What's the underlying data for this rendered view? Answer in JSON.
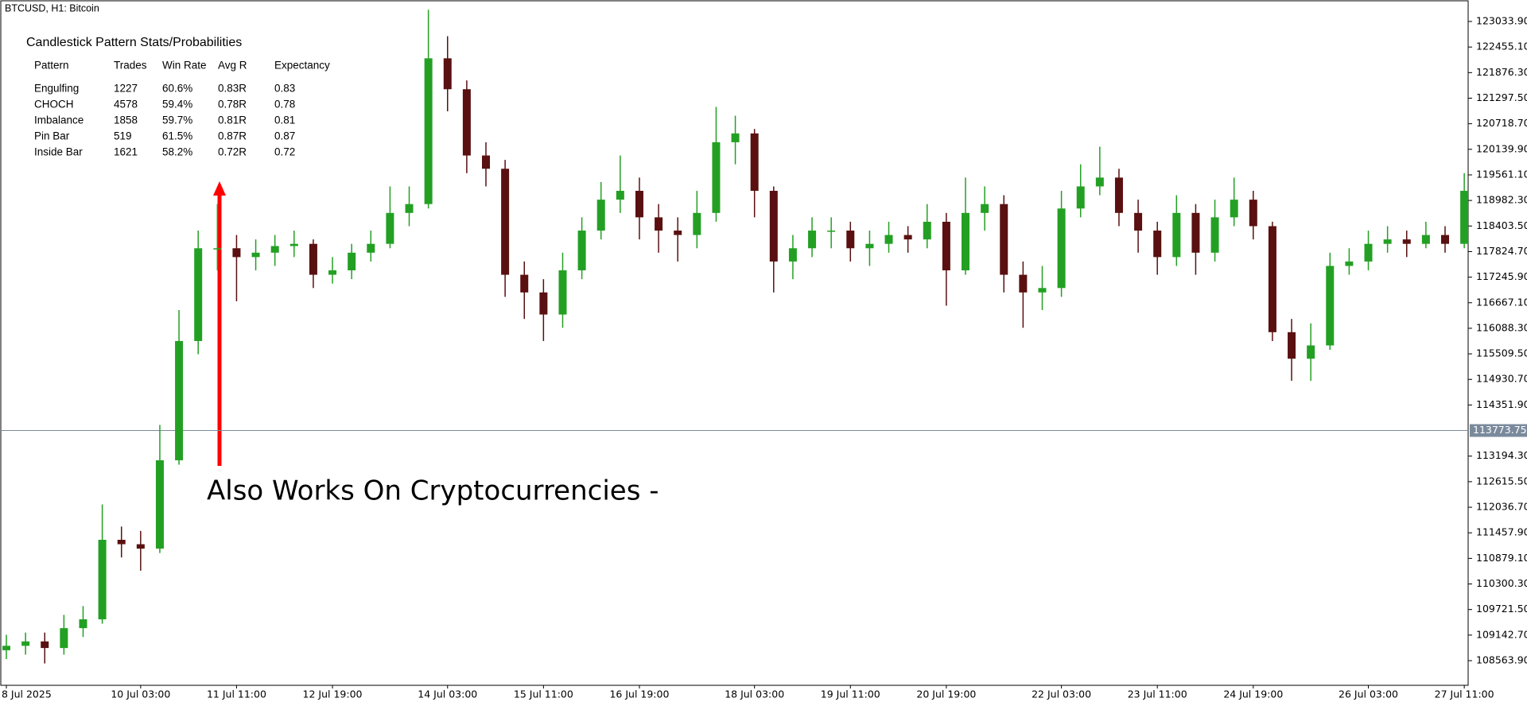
{
  "header": {
    "symbol": "BTCUSD, H1:  Bitcoin"
  },
  "stats_panel": {
    "title": "Candlestick Pattern Stats/Probabilities",
    "columns": [
      "Pattern",
      "Trades",
      "Win Rate",
      "Avg R",
      "Expectancy"
    ],
    "rows": [
      [
        "Engulfing",
        "1227",
        "60.6%",
        "0.83R",
        "0.83"
      ],
      [
        "CHOCH",
        "4578",
        "59.4%",
        "0.78R",
        "0.78"
      ],
      [
        "Imbalance",
        "1858",
        "59.7%",
        "0.81R",
        "0.81"
      ],
      [
        "Pin Bar",
        "519",
        "61.5%",
        "0.87R",
        "0.87"
      ],
      [
        "Inside Bar",
        "1621",
        "58.2%",
        "0.72R",
        "0.72"
      ]
    ],
    "expectancy_color": "#1a8c1a"
  },
  "annotation": {
    "text": "Also Works On Cryptocurrencies -",
    "arrow_color": "#ff0000"
  },
  "chart_data": {
    "type": "candlestick",
    "categories": [
      "8 Jul 2025",
      null,
      null,
      null,
      null,
      null,
      null,
      "10 Jul 03:00",
      null,
      null,
      null,
      null,
      "11 Jul 11:00",
      null,
      null,
      null,
      null,
      "12 Jul 19:00",
      null,
      null,
      null,
      null,
      null,
      "14 Jul 03:00",
      null,
      null,
      null,
      null,
      "15 Jul 11:00",
      null,
      null,
      null,
      null,
      "16 Jul 19:00",
      null,
      null,
      null,
      null,
      null,
      "18 Jul 03:00",
      null,
      null,
      null,
      null,
      "19 Jul 11:00",
      null,
      null,
      null,
      null,
      "20 Jul 19:00",
      null,
      null,
      null,
      null,
      null,
      "22 Jul 03:00",
      null,
      null,
      null,
      null,
      "23 Jul 11:00",
      null,
      null,
      null,
      null,
      "24 Jul 19:00",
      null,
      null,
      null,
      null,
      null,
      "26 Jul 03:00",
      null,
      null,
      null,
      null,
      "27 Jul 11:00"
    ],
    "series": [
      {
        "up_color": "#23a023",
        "down_color": "#5a1010",
        "open": [
          108800,
          108900,
          109000,
          108850,
          109300,
          109500,
          111300,
          111200,
          111100,
          113100,
          115800,
          117900,
          117900,
          117700,
          117800,
          117950,
          118000,
          117300,
          117400,
          117800,
          118000,
          118700,
          118900,
          122200,
          121500,
          120000,
          119700,
          117300,
          116900,
          116400,
          117400,
          118300,
          119000,
          119200,
          118600,
          118300,
          118200,
          118700,
          120300,
          120500,
          119200,
          117600,
          117900,
          118300,
          118300,
          117900,
          118000,
          118200,
          118100,
          118500,
          117400,
          118700,
          118900,
          117300,
          116900,
          117000,
          118800,
          119300,
          119500,
          118700,
          118300,
          117700,
          118700,
          117800,
          118600,
          119000,
          118400,
          116000,
          115400,
          115700,
          117500,
          117600,
          118000,
          118100,
          118000,
          118200,
          118000
        ],
        "high": [
          109150,
          109200,
          109200,
          109600,
          109800,
          112100,
          111600,
          111500,
          113900,
          116500,
          118300,
          118900,
          118200,
          118100,
          118200,
          118300,
          118100,
          117700,
          118000,
          118300,
          119300,
          119300,
          123300,
          122700,
          121700,
          120300,
          119900,
          117600,
          117200,
          117800,
          118600,
          119400,
          120000,
          119500,
          118900,
          118600,
          119200,
          121100,
          120900,
          120600,
          119300,
          118200,
          118600,
          118600,
          118500,
          118300,
          118500,
          118400,
          118900,
          118700,
          119500,
          119300,
          119100,
          117600,
          117500,
          119200,
          119800,
          120200,
          119700,
          119000,
          118500,
          119100,
          118900,
          119000,
          119500,
          119200,
          118500,
          116300,
          116200,
          117800,
          117900,
          118300,
          118400,
          118300,
          118500,
          118400,
          119600
        ],
        "low": [
          108600,
          108700,
          108500,
          108700,
          109100,
          109400,
          110900,
          110600,
          111000,
          113000,
          115500,
          117400,
          116700,
          117400,
          117500,
          117700,
          117000,
          117100,
          117200,
          117600,
          117900,
          118400,
          118800,
          121000,
          119600,
          119300,
          116800,
          116300,
          115800,
          116100,
          117200,
          118100,
          118700,
          118100,
          117800,
          117600,
          117900,
          118500,
          119800,
          118600,
          116900,
          117200,
          117700,
          117900,
          117600,
          117500,
          117800,
          117800,
          117900,
          116600,
          117300,
          118300,
          116900,
          116100,
          116500,
          116800,
          118600,
          119100,
          118400,
          117800,
          117300,
          117500,
          117300,
          117600,
          118400,
          118100,
          115800,
          114900,
          114900,
          115600,
          117300,
          117400,
          117800,
          117700,
          117900,
          117800,
          117900
        ],
        "close": [
          108900,
          109000,
          108850,
          109300,
          109500,
          111300,
          111200,
          111100,
          113100,
          115800,
          117900,
          117900,
          117700,
          117800,
          117950,
          118000,
          117300,
          117400,
          117800,
          118000,
          118700,
          118900,
          122200,
          121500,
          120000,
          119700,
          117300,
          116900,
          116400,
          117400,
          118300,
          119000,
          119200,
          118600,
          118300,
          118200,
          118700,
          120300,
          120500,
          119200,
          117600,
          117900,
          118300,
          118300,
          117900,
          118000,
          118200,
          118100,
          118500,
          117400,
          118700,
          118900,
          117300,
          116900,
          117000,
          118800,
          119300,
          119500,
          118700,
          118300,
          117700,
          118700,
          117800,
          118600,
          119000,
          118400,
          116000,
          115400,
          115700,
          117500,
          117600,
          118000,
          118100,
          118000,
          118200,
          118000,
          119200
        ]
      }
    ],
    "ylim": [
      108006,
      123520
    ],
    "yticks": [
      {
        "value": 123033.9,
        "label": "123033.90"
      },
      {
        "value": 122455.1,
        "label": "122455.10"
      },
      {
        "value": 121876.3,
        "label": "121876.30"
      },
      {
        "value": 121297.5,
        "label": "121297.50"
      },
      {
        "value": 120718.7,
        "label": "120718.70"
      },
      {
        "value": 120139.9,
        "label": "120139.90"
      },
      {
        "value": 119561.1,
        "label": "119561.10"
      },
      {
        "value": 118982.3,
        "label": "118982.30"
      },
      {
        "value": 118403.5,
        "label": "118403.50"
      },
      {
        "value": 117824.7,
        "label": "117824.70"
      },
      {
        "value": 117245.9,
        "label": "117245.90"
      },
      {
        "value": 116667.1,
        "label": "116667.10"
      },
      {
        "value": 116088.3,
        "label": "116088.30"
      },
      {
        "value": 115509.5,
        "label": "115509.50"
      },
      {
        "value": 114930.7,
        "label": "114930.70"
      },
      {
        "value": 114351.9,
        "label": "114351.90"
      },
      {
        "value": 113194.3,
        "label": "113194.30"
      },
      {
        "value": 112615.5,
        "label": "112615.50"
      },
      {
        "value": 112036.7,
        "label": "112036.70"
      },
      {
        "value": 111457.9,
        "label": "111457.90"
      },
      {
        "value": 110879.1,
        "label": "110879.10"
      },
      {
        "value": 110300.3,
        "label": "110300.30"
      },
      {
        "value": 109721.5,
        "label": "109721.50"
      },
      {
        "value": 109142.7,
        "label": "109142.70"
      },
      {
        "value": 108563.9,
        "label": "108563.90"
      }
    ],
    "price_line": {
      "value": 113773.75,
      "label": "113773.75",
      "color": "#7a8a9c"
    }
  }
}
